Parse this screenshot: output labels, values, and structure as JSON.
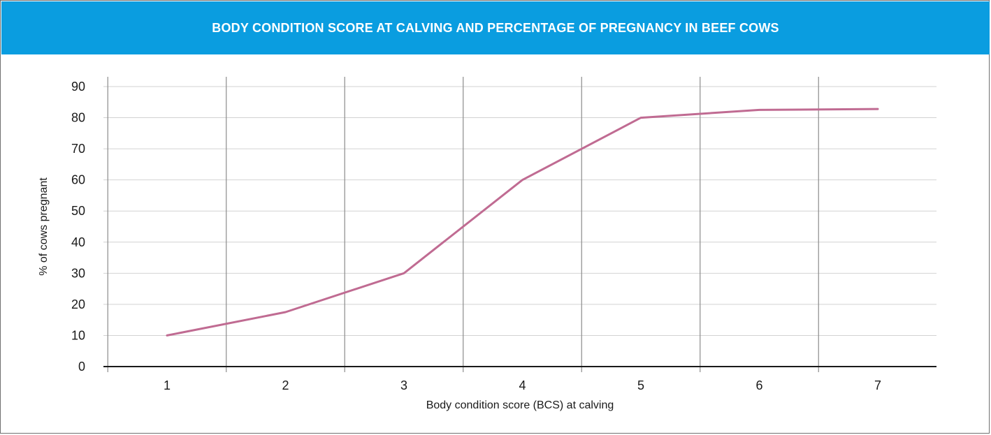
{
  "banner": {
    "title": "BODY CONDITION SCORE AT CALVING AND PERCENTAGE OF PREGNANCY IN BEEF COWS",
    "color": "#0a9de0"
  },
  "chart_data": {
    "type": "line",
    "title": "BODY CONDITION SCORE AT CALVING AND PERCENTAGE OF PREGNANCY IN BEEF COWS",
    "xlabel": "Body condition score (BCS) at calving",
    "ylabel": "% of cows pregnant",
    "x_ticks": [
      "1",
      "2",
      "3",
      "4",
      "5",
      "6",
      "7"
    ],
    "y_ticks": [
      "0",
      "10",
      "20",
      "30",
      "40",
      "50",
      "60",
      "70",
      "80",
      "90"
    ],
    "ylim": [
      0,
      90
    ],
    "grid": true,
    "legend": "none",
    "series": [
      {
        "color": "#c06b92",
        "x": [
          1,
          2,
          3,
          4,
          5,
          6,
          7
        ],
        "values": [
          10,
          17.5,
          30,
          60,
          80,
          82.5,
          82.8
        ]
      }
    ]
  }
}
